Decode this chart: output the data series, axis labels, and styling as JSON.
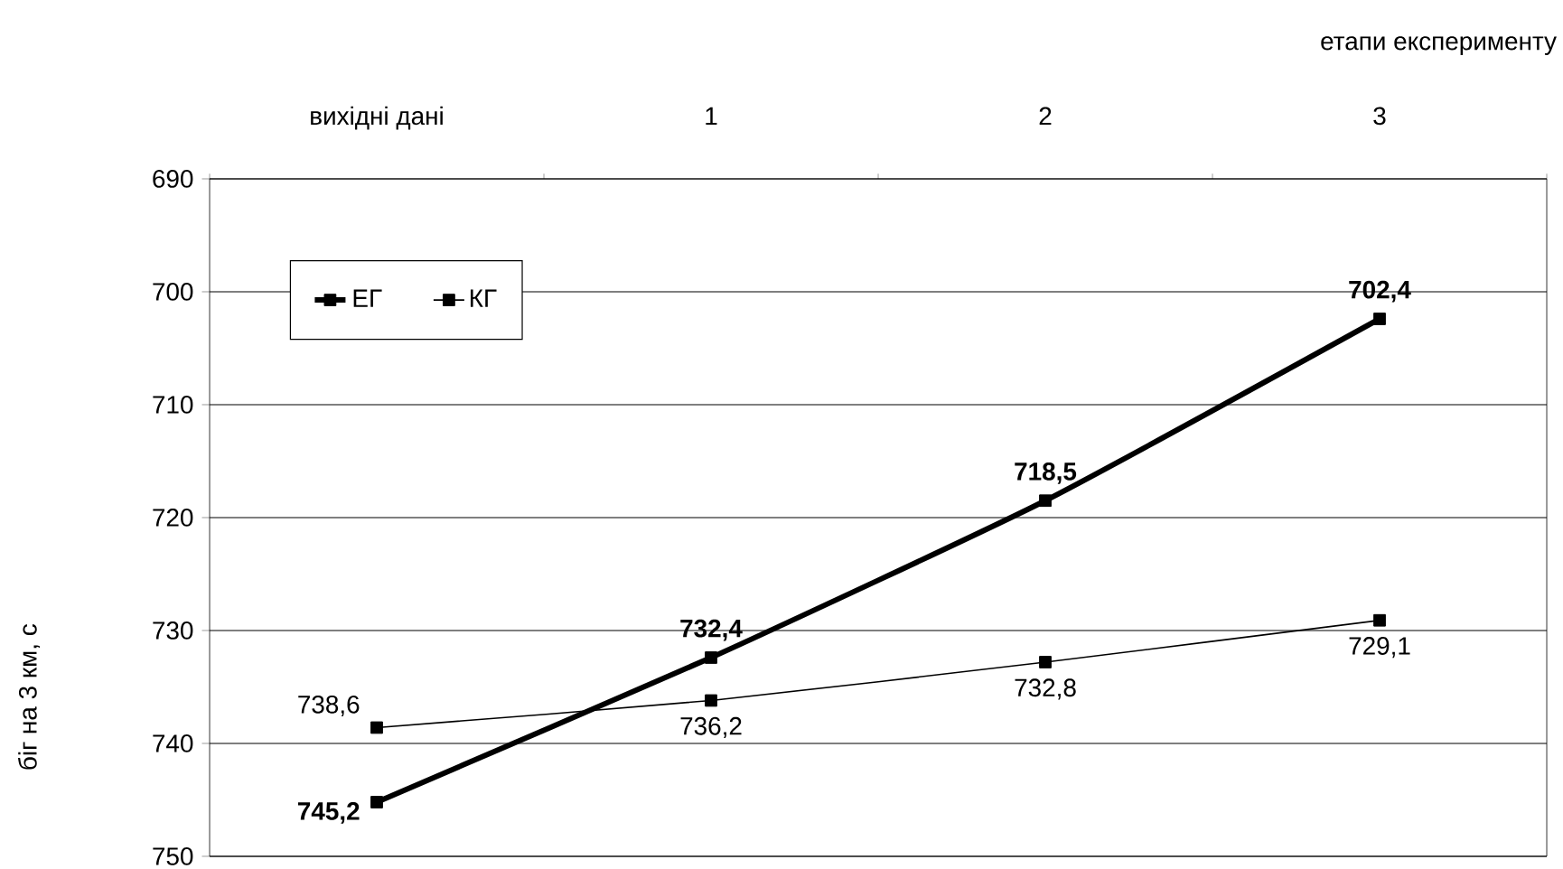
{
  "chart_data": {
    "type": "line",
    "xlabel": "етапи експерименту",
    "ylabel": "біг на 3 км, с",
    "categories": [
      "вихідні дані",
      "1",
      "2",
      "3"
    ],
    "series": [
      {
        "name": "ЕГ",
        "color": "#000000",
        "values": [
          745.2,
          732.4,
          718.5,
          702.4
        ],
        "value_labels": [
          "745,2",
          "732,4",
          "718,5",
          "702,4"
        ]
      },
      {
        "name": "КГ",
        "color": "#000000",
        "values": [
          738.6,
          736.2,
          732.8,
          729.1
        ],
        "value_labels": [
          "738,6",
          "736,2",
          "732,8",
          "729,1"
        ]
      }
    ],
    "ylim": [
      750,
      690
    ],
    "yticks": [
      690,
      700,
      710,
      720,
      730,
      740,
      750
    ],
    "grid": "y",
    "legend": "top left",
    "marker": "square",
    "line_style": "solid"
  }
}
